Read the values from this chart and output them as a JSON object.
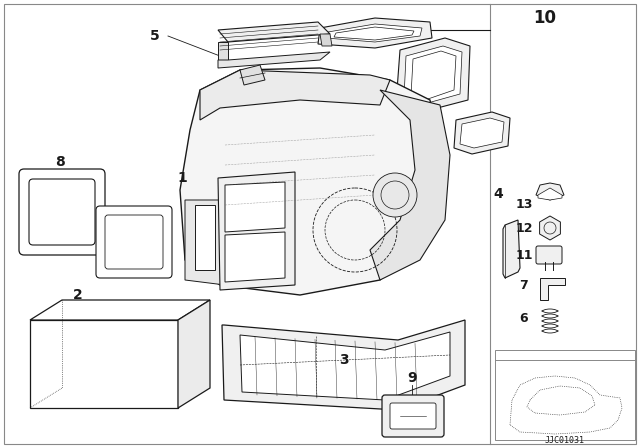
{
  "bg_color": "#ffffff",
  "line_color": "#1a1a1a",
  "catalog_number": "JJC01031",
  "fig_width": 6.4,
  "fig_height": 4.48,
  "dpi": 100,
  "border_color": "#999999"
}
